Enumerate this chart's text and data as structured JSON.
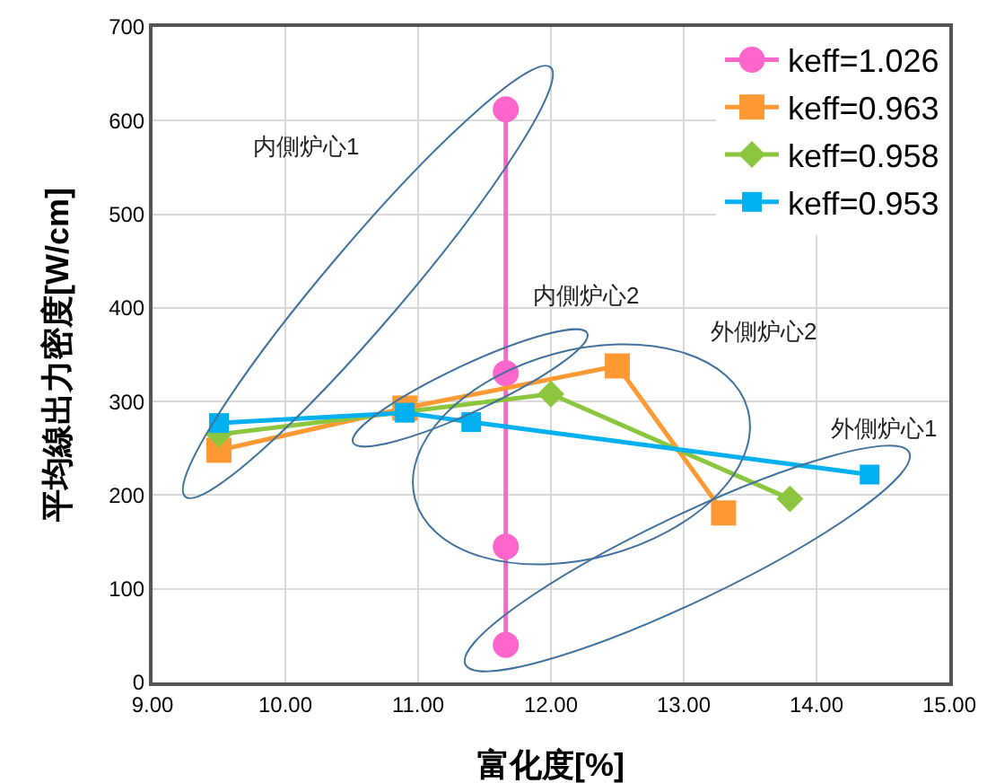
{
  "chart_data": {
    "type": "line",
    "xlabel": "富化度[%]",
    "ylabel": "平均線出力密度[W/cm]",
    "annotations": [
      "内側炉心1",
      "内側炉心2",
      "外側炉心2",
      "外側炉心1"
    ],
    "series": [
      {
        "name": "keff=1.026",
        "color": "#ff66cc",
        "marker": "circle",
        "x": [
          11.66,
          11.66,
          11.66,
          11.66
        ],
        "values": [
          612,
          330,
          145,
          40
        ]
      },
      {
        "name": "keff=0.963",
        "color": "#ff9933",
        "marker": "square",
        "x": [
          9.5,
          10.9,
          12.5,
          13.3
        ],
        "values": [
          248,
          293,
          338,
          181
        ]
      },
      {
        "name": "keff=0.958",
        "color": "#8cc63f",
        "marker": "diamond",
        "x": [
          9.5,
          12.0,
          13.8
        ],
        "values": [
          265,
          308,
          196
        ]
      },
      {
        "name": "keff=0.953",
        "color": "#00b0f0",
        "marker": "square",
        "x": [
          9.5,
          10.9,
          11.4,
          14.4
        ],
        "values": [
          277,
          288,
          278,
          222
        ]
      }
    ],
    "xlim": [
      9,
      15
    ],
    "xticks": [
      {
        "value": 9,
        "label": "9.00"
      },
      {
        "value": 10,
        "label": "10.00"
      },
      {
        "value": 11,
        "label": "11.00"
      },
      {
        "value": 12,
        "label": "12.00"
      },
      {
        "value": 13,
        "label": "13.00"
      },
      {
        "value": 14,
        "label": "14.00"
      },
      {
        "value": 15,
        "label": "15.00"
      }
    ],
    "ylim": [
      0,
      700
    ],
    "yticks": [
      0,
      100,
      200,
      300,
      400,
      500,
      600,
      700
    ],
    "grid": true,
    "legend": "top right",
    "line_style": "solid"
  }
}
